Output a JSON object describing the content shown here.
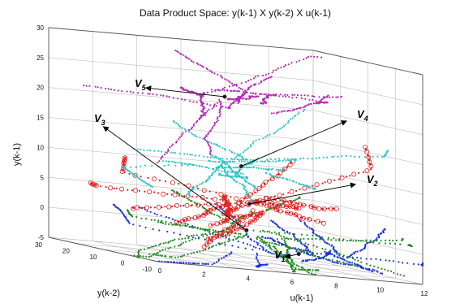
{
  "chart_data": {
    "type": "scatter",
    "title": "Data Product Space:  y(k-1)  X  y(k-2)  X u(k-1)",
    "xlabel": "u(k-1)",
    "ylabel": "y(k-2)",
    "zlabel": "y(k-1)",
    "xlim": [
      0,
      12
    ],
    "ylim": [
      -10,
      30
    ],
    "zlim": [
      -5,
      30
    ],
    "x_ticks": [
      "0",
      "2",
      "4",
      "6",
      "8",
      "10",
      "12"
    ],
    "y_ticks": [
      "-10",
      "0",
      "10",
      "20",
      "30"
    ],
    "z_ticks": [
      "-5",
      "0",
      "5",
      "10",
      "15",
      "20",
      "25",
      "30"
    ],
    "grid": true,
    "clusters": [
      {
        "label": "V",
        "index": "1",
        "color": "#1f35d6",
        "center": [
          7,
          -5,
          -2
        ],
        "spread": [
          3.5,
          5,
          1.5
        ]
      },
      {
        "label": "V",
        "index": "2",
        "color": "#e02020",
        "center": [
          6,
          5,
          5
        ],
        "spread": [
          3,
          5,
          2.5
        ]
      },
      {
        "label": "V",
        "index": "3",
        "color": "#1f8a1f",
        "center": [
          5,
          -2,
          1
        ],
        "spread": [
          3,
          6,
          2
        ]
      },
      {
        "label": "V",
        "index": "4",
        "color": "#2fc4c4",
        "center": [
          6,
          8,
          11
        ],
        "spread": [
          3.5,
          6,
          3
        ]
      },
      {
        "label": "V",
        "index": "5",
        "color": "#b22cb2",
        "center": [
          6,
          14,
          22
        ],
        "spread": [
          2.5,
          5,
          4
        ]
      }
    ],
    "colors": {
      "blue": "#1f35d6",
      "red": "#e02020",
      "green": "#1f8a1f",
      "cyan": "#2fc4c4",
      "magenta": "#b22cb2"
    }
  }
}
